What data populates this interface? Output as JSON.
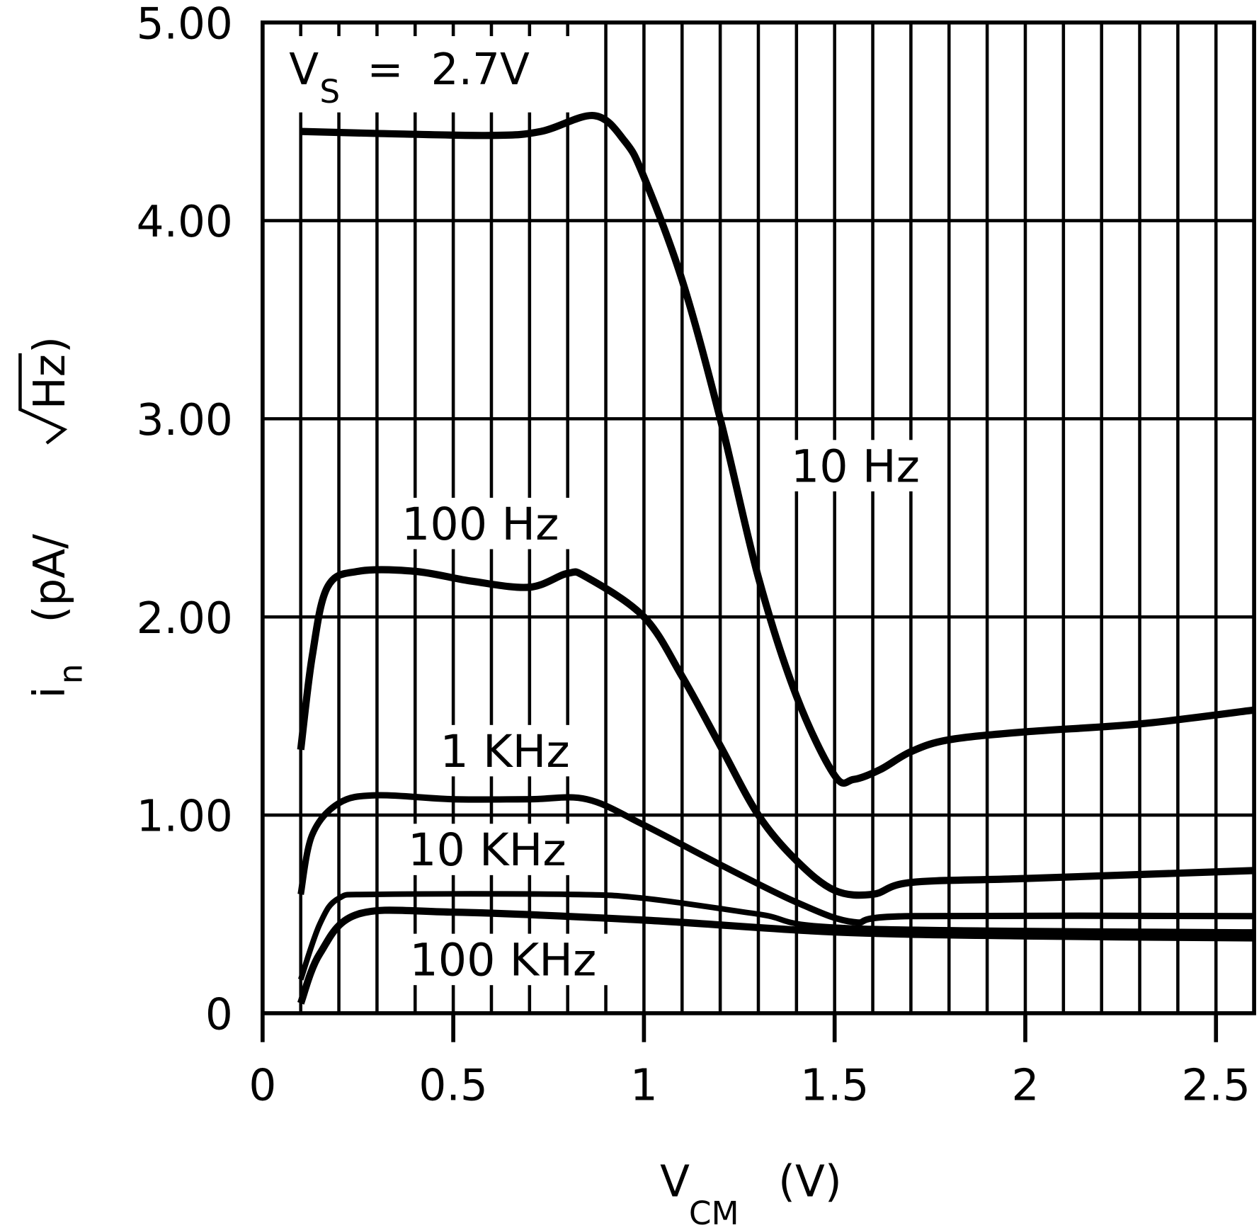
{
  "chart_data": {
    "type": "line",
    "title": "",
    "annotation": {
      "main": "V",
      "sub": "S",
      "rest": " =  2.7V"
    },
    "xlabel": {
      "main": "V",
      "sub": "CM",
      "rest": "  (V)"
    },
    "ylabel": {
      "main": "i",
      "sub": "n",
      "rest": "  (pA/",
      "root": "Hz",
      "close": ")"
    },
    "xlim": [
      0,
      2.6
    ],
    "ylim": [
      0,
      5
    ],
    "grid": true,
    "x_ticks": [
      {
        "v": 0,
        "label": "0"
      },
      {
        "v": 0.5,
        "label": "0.5"
      },
      {
        "v": 1,
        "label": "1"
      },
      {
        "v": 1.5,
        "label": "1.5"
      },
      {
        "v": 2,
        "label": "2"
      },
      {
        "v": 2.5,
        "label": "2.5"
      }
    ],
    "y_ticks": [
      {
        "v": 0,
        "label": "0"
      },
      {
        "v": 1,
        "label": "1.00"
      },
      {
        "v": 2,
        "label": "2.00"
      },
      {
        "v": 3,
        "label": "3.00"
      },
      {
        "v": 4,
        "label": "4.00"
      },
      {
        "v": 5,
        "label": "5.00"
      }
    ],
    "series": [
      {
        "name": "10 Hz",
        "points": [
          [
            0.1,
            4.45
          ],
          [
            0.3,
            4.44
          ],
          [
            0.6,
            4.43
          ],
          [
            0.73,
            4.45
          ],
          [
            0.87,
            4.53
          ],
          [
            0.95,
            4.4
          ],
          [
            1.0,
            4.22
          ],
          [
            1.1,
            3.7
          ],
          [
            1.2,
            3.0
          ],
          [
            1.3,
            2.2
          ],
          [
            1.4,
            1.6
          ],
          [
            1.5,
            1.2
          ],
          [
            1.55,
            1.18
          ],
          [
            1.62,
            1.23
          ],
          [
            1.7,
            1.32
          ],
          [
            1.8,
            1.38
          ],
          [
            2.0,
            1.42
          ],
          [
            2.3,
            1.46
          ],
          [
            2.6,
            1.53
          ]
        ]
      },
      {
        "name": "100 Hz",
        "points": [
          [
            0.1,
            1.33
          ],
          [
            0.13,
            1.8
          ],
          [
            0.17,
            2.15
          ],
          [
            0.25,
            2.23
          ],
          [
            0.4,
            2.23
          ],
          [
            0.55,
            2.18
          ],
          [
            0.7,
            2.15
          ],
          [
            0.8,
            2.22
          ],
          [
            0.85,
            2.2
          ],
          [
            1.0,
            2.0
          ],
          [
            1.1,
            1.7
          ],
          [
            1.2,
            1.35
          ],
          [
            1.3,
            1.0
          ],
          [
            1.4,
            0.77
          ],
          [
            1.5,
            0.62
          ],
          [
            1.6,
            0.6
          ],
          [
            1.7,
            0.66
          ],
          [
            2.0,
            0.68
          ],
          [
            2.6,
            0.72
          ]
        ]
      },
      {
        "name": "1 KHz",
        "points": [
          [
            0.1,
            0.6
          ],
          [
            0.13,
            0.9
          ],
          [
            0.2,
            1.06
          ],
          [
            0.3,
            1.1
          ],
          [
            0.5,
            1.08
          ],
          [
            0.7,
            1.08
          ],
          [
            0.85,
            1.08
          ],
          [
            1.0,
            0.95
          ],
          [
            1.2,
            0.75
          ],
          [
            1.4,
            0.56
          ],
          [
            1.55,
            0.46
          ],
          [
            1.7,
            0.49
          ],
          [
            2.6,
            0.49
          ]
        ]
      },
      {
        "name": "10 KHz",
        "points": [
          [
            0.1,
            0.17
          ],
          [
            0.15,
            0.45
          ],
          [
            0.2,
            0.58
          ],
          [
            0.3,
            0.6
          ],
          [
            0.8,
            0.6
          ],
          [
            1.0,
            0.58
          ],
          [
            1.3,
            0.5
          ],
          [
            1.55,
            0.43
          ],
          [
            2.6,
            0.41
          ]
        ]
      },
      {
        "name": "100 KHz",
        "points": [
          [
            0.1,
            0.05
          ],
          [
            0.15,
            0.3
          ],
          [
            0.25,
            0.5
          ],
          [
            0.5,
            0.51
          ],
          [
            1.0,
            0.47
          ],
          [
            1.5,
            0.41
          ],
          [
            2.0,
            0.39
          ],
          [
            2.6,
            0.38
          ]
        ]
      }
    ]
  }
}
